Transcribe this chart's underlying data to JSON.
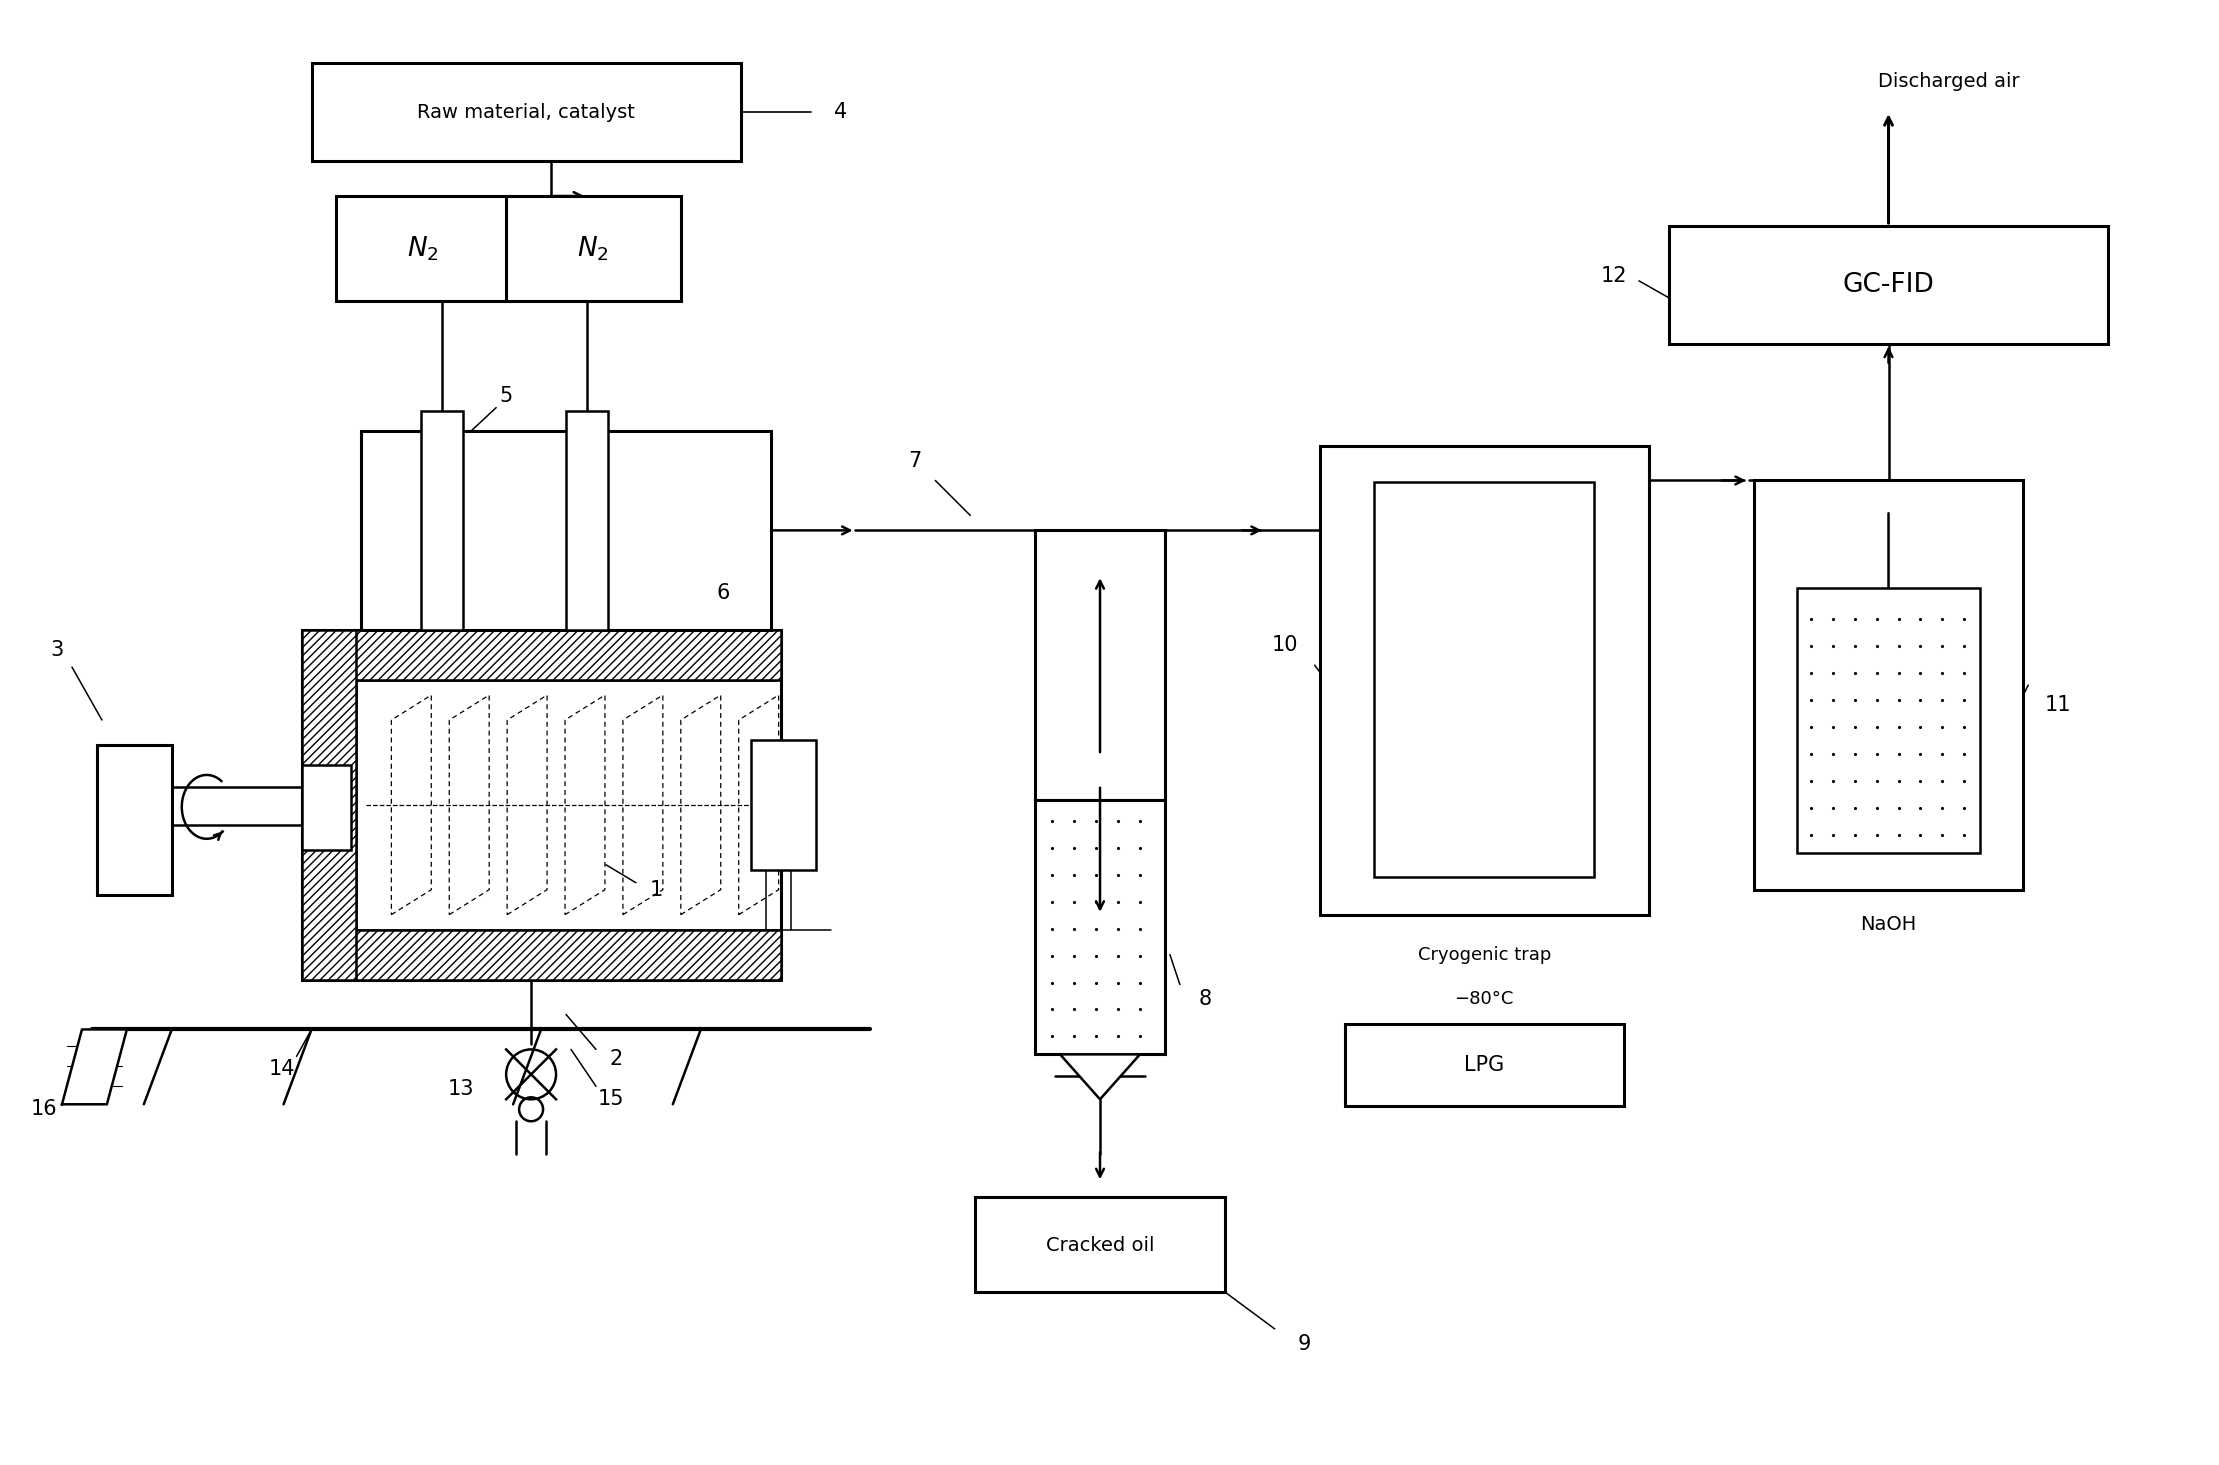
{
  "bg_color": "#ffffff",
  "lc": "#000000",
  "labels": {
    "raw_material": "Raw material, catalyst",
    "n2": "N₂",
    "discharged_air": "Discharged air",
    "gc_fid": "GC-FID",
    "cryogenic_trap_line1": "Cryogenic trap",
    "cryogenic_trap_line2": "−80°C",
    "lpg": "LPG",
    "naoh": "NaOH",
    "cracked_oil": "Cracked oil"
  },
  "numbers": [
    "1",
    "2",
    "3",
    "4",
    "5",
    "6",
    "7",
    "8",
    "9",
    "10",
    "11",
    "12",
    "13",
    "14",
    "15",
    "16"
  ],
  "figsize": [
    22.19,
    14.65
  ],
  "dpi": 100
}
